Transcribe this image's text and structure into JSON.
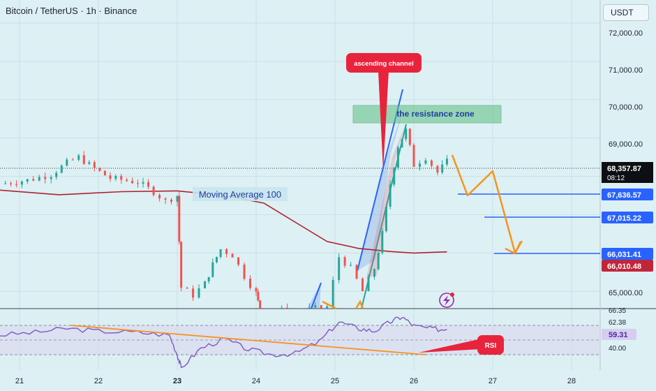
{
  "header": {
    "title": "Bitcoin / TetherUS · 1h · Binance",
    "currency": "USDT"
  },
  "chart_data": {
    "type": "candlestick",
    "title": "Bitcoin / TetherUS · 1h · Binance",
    "ylim": [
      64550,
      72600
    ],
    "price_axis_ticks": [
      "72,000.00",
      "71,000.00",
      "70,000.00",
      "69,000.00",
      "68,000.00",
      "65,000.00"
    ],
    "time_axis_ticks": [
      "21",
      "22",
      "23",
      "24",
      "25",
      "26",
      "27",
      "28"
    ],
    "price_line_labels": [
      {
        "value": "67,636.57",
        "style": "level"
      },
      {
        "value": "67,015.22",
        "style": "level"
      },
      {
        "value": "66,031.41",
        "style": "level"
      },
      {
        "value": "66,010.48",
        "style": "ma"
      }
    ],
    "current_price": {
      "value": "68,357.87",
      "countdown": "08:12"
    },
    "annotations": {
      "ascending_channel": "ascending channel",
      "resistance_zone": "the resistance zone",
      "moving_average": "Moving Average 100",
      "rsi": "RSI"
    },
    "rsi": {
      "ticks": [
        "66.35",
        "62.38",
        "40.00"
      ],
      "current": "59.31"
    },
    "colors": {
      "up": "#26a69a",
      "down": "#ef5350",
      "ma": "#b02030",
      "channel": "#2962ff",
      "projection": "#f7941d",
      "rsi_line": "#7e57c2",
      "callout": "#e8243c",
      "level_line": "#2962ff"
    }
  }
}
